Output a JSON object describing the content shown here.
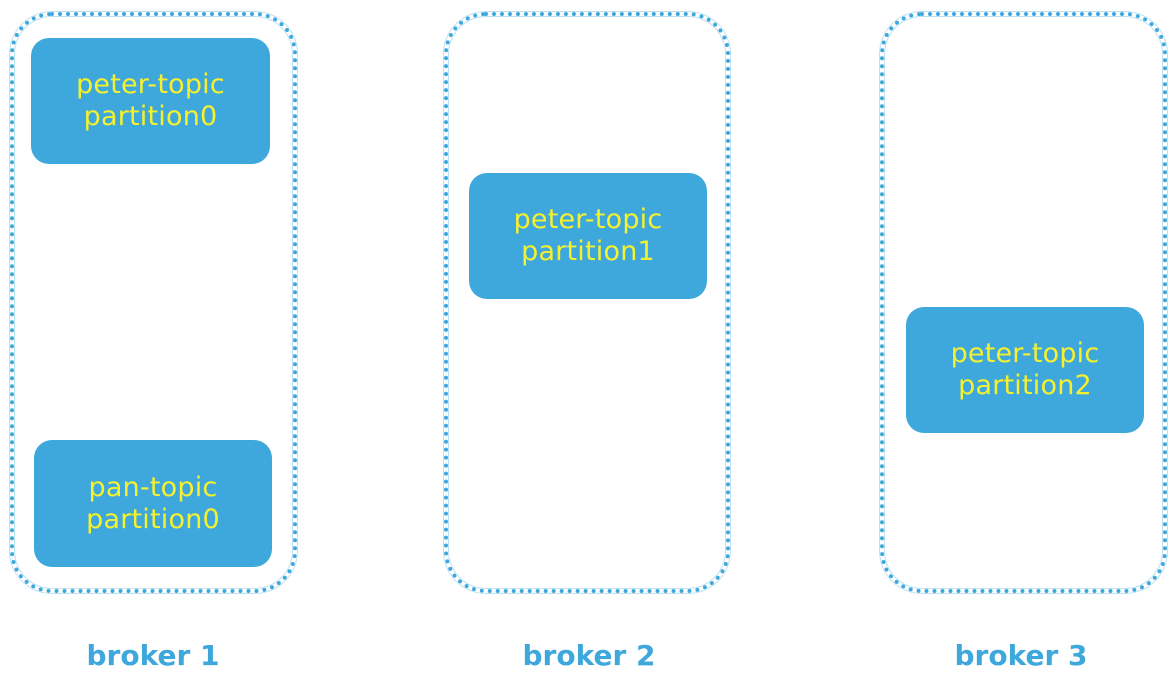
{
  "brokers": [
    {
      "label": "broker 1",
      "partitions": [
        {
          "topic": "peter-topic",
          "partition": "partition0"
        },
        {
          "topic": "pan-topic",
          "partition": "partition0"
        }
      ]
    },
    {
      "label": "broker 2",
      "partitions": [
        {
          "topic": "peter-topic",
          "partition": "partition1"
        }
      ]
    },
    {
      "label": "broker 3",
      "partitions": [
        {
          "topic": "peter-topic",
          "partition": "partition2"
        }
      ]
    }
  ],
  "colors": {
    "frame": "#3ea8dc",
    "partition_fill": "#3ea8dc",
    "partition_text": "#f5f12e",
    "label_text": "#3ea8dc"
  }
}
